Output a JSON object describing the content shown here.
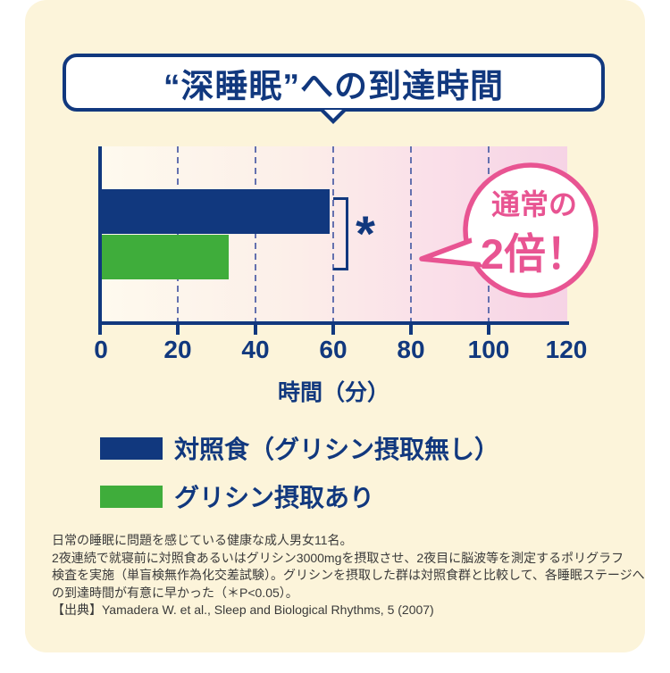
{
  "title": {
    "text": "“深睡眠”への到達時間"
  },
  "chart_data": {
    "type": "bar",
    "orientation": "horizontal",
    "title": "“深睡眠”への到達時間",
    "categories": [
      "対照食（グリシン摂取無し）",
      "グリシン摂取あり"
    ],
    "values": [
      59,
      33
    ],
    "unit": "分",
    "xlabel": "時間（分）",
    "xlim": [
      0,
      120
    ],
    "xticks": [
      0,
      20,
      40,
      60,
      80,
      100,
      120
    ],
    "grid": "dashed vertical gridlines every 20",
    "significance_marker": "*",
    "legend_position": "bottom-left",
    "colors": {
      "bar_control": "#11387E",
      "bar_glycine": "#3FAD3B",
      "axis": "#11387E",
      "gridline": "#6471AF",
      "plot_bg_gradient_left": "#FEFAEE",
      "plot_bg_gradient_right": "#F6D3E5"
    }
  },
  "callout": {
    "line1": "通常の",
    "line2": "2倍！",
    "color": "#E85492"
  },
  "legend": {
    "items": [
      {
        "label": "対照食（グリシン摂取無し）",
        "color": "#11387E"
      },
      {
        "label": "グリシン摂取あり",
        "color": "#3FAD3B"
      }
    ]
  },
  "footnotes": {
    "lines": [
      "日常の睡眠に問題を感じている健康な成人男女11名。",
      "2夜連続で就寝前に対照食あるいはグリシン3000mgを摂取させ、2夜目に脳波等を測定するポリグラフ",
      "検査を実施（単盲検無作為化交差試験）。グリシンを摂取した群は対照食群と比較して、各睡眠ステージへ",
      "の到達時間が有意に早かった（＊P<0.05）。",
      "【出典】Yamadera W. et al., Sleep and Biological Rhythms, 5 (2007)"
    ]
  },
  "palette": {
    "page_bg": "#FFFFFF",
    "panel_bg": "#FCF4DA",
    "navy": "#11387E",
    "green": "#3FAD3B",
    "pink": "#E85492",
    "footnote_text": "#3A3A3A"
  }
}
